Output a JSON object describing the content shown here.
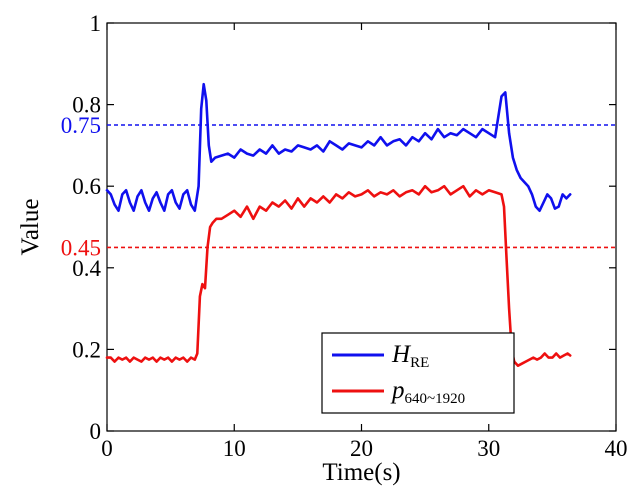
{
  "chart_data": {
    "type": "line",
    "title": "",
    "xlabel": "Time(s)",
    "ylabel": "Value",
    "xlim": [
      0,
      40
    ],
    "ylim": [
      0,
      1
    ],
    "xticks": [
      0,
      10,
      20,
      30,
      40
    ],
    "yticks": [
      0,
      0.2,
      0.4,
      0.6,
      0.8,
      1
    ],
    "xtick_labels": [
      "0",
      "10",
      "20",
      "30",
      "40"
    ],
    "ytick_labels": [
      "0",
      "0.2",
      "0.4",
      "0.6",
      "0.8",
      "1"
    ],
    "grid": false,
    "legend_position": "bottom-right",
    "series": [
      {
        "name": "H",
        "name_subscript": "RE",
        "color": "#1010ee",
        "x": [
          0,
          0.3,
          0.6,
          0.9,
          1.2,
          1.5,
          1.8,
          2.1,
          2.4,
          2.7,
          3.0,
          3.3,
          3.6,
          3.9,
          4.2,
          4.5,
          4.8,
          5.1,
          5.4,
          5.7,
          6.0,
          6.3,
          6.6,
          6.9,
          7.2,
          7.4,
          7.6,
          7.8,
          8.0,
          8.2,
          8.5,
          9,
          9.5,
          10,
          10.5,
          11,
          11.5,
          12,
          12.5,
          13,
          13.5,
          14,
          14.5,
          15,
          15.5,
          16,
          16.5,
          17,
          17.5,
          18,
          18.5,
          19,
          19.5,
          20,
          20.5,
          21,
          21.5,
          22,
          22.5,
          23,
          23.5,
          24,
          24.5,
          25,
          25.5,
          26,
          26.5,
          27,
          27.5,
          28,
          28.5,
          29,
          29.5,
          30,
          30.5,
          31,
          31.3,
          31.6,
          31.9,
          32.2,
          32.5,
          32.8,
          33.1,
          33.4,
          33.7,
          34,
          34.3,
          34.6,
          34.9,
          35.2,
          35.5,
          35.8,
          36.1,
          36.4
        ],
        "y": [
          0.59,
          0.58,
          0.555,
          0.54,
          0.58,
          0.59,
          0.56,
          0.54,
          0.575,
          0.59,
          0.56,
          0.54,
          0.57,
          0.585,
          0.56,
          0.54,
          0.58,
          0.59,
          0.56,
          0.545,
          0.58,
          0.59,
          0.555,
          0.54,
          0.6,
          0.79,
          0.85,
          0.81,
          0.7,
          0.66,
          0.67,
          0.675,
          0.68,
          0.67,
          0.69,
          0.68,
          0.675,
          0.69,
          0.68,
          0.7,
          0.68,
          0.69,
          0.685,
          0.7,
          0.695,
          0.69,
          0.7,
          0.685,
          0.71,
          0.7,
          0.69,
          0.705,
          0.7,
          0.695,
          0.71,
          0.7,
          0.72,
          0.7,
          0.71,
          0.715,
          0.7,
          0.72,
          0.71,
          0.73,
          0.715,
          0.74,
          0.72,
          0.73,
          0.725,
          0.74,
          0.73,
          0.72,
          0.74,
          0.73,
          0.72,
          0.82,
          0.83,
          0.73,
          0.67,
          0.64,
          0.62,
          0.61,
          0.6,
          0.58,
          0.55,
          0.54,
          0.56,
          0.58,
          0.57,
          0.545,
          0.55,
          0.58,
          0.57,
          0.58
        ]
      },
      {
        "name": "p",
        "name_subscript": "640~1920",
        "color": "#ee1010",
        "x": [
          0,
          0.3,
          0.6,
          0.9,
          1.2,
          1.5,
          1.8,
          2.1,
          2.4,
          2.7,
          3.0,
          3.3,
          3.6,
          3.9,
          4.2,
          4.5,
          4.8,
          5.1,
          5.4,
          5.7,
          6.0,
          6.3,
          6.6,
          6.9,
          7.1,
          7.3,
          7.5,
          7.7,
          7.9,
          8.1,
          8.3,
          8.6,
          9,
          9.5,
          10,
          10.5,
          11,
          11.5,
          12,
          12.5,
          13,
          13.5,
          14,
          14.5,
          15,
          15.5,
          16,
          16.5,
          17,
          17.5,
          18,
          18.5,
          19,
          19.5,
          20,
          20.5,
          21,
          21.5,
          22,
          22.5,
          23,
          23.5,
          24,
          24.5,
          25,
          25.5,
          26,
          26.5,
          27,
          27.5,
          28,
          28.5,
          29,
          29.5,
          30,
          30.5,
          31,
          31.2,
          31.4,
          31.6,
          31.8,
          32,
          32.3,
          32.6,
          32.9,
          33.2,
          33.5,
          33.8,
          34.1,
          34.4,
          34.7,
          35,
          35.3,
          35.6,
          35.9,
          36.2,
          36.4
        ],
        "y": [
          0.18,
          0.18,
          0.17,
          0.18,
          0.175,
          0.18,
          0.17,
          0.18,
          0.175,
          0.17,
          0.18,
          0.175,
          0.18,
          0.17,
          0.18,
          0.175,
          0.18,
          0.17,
          0.18,
          0.175,
          0.18,
          0.17,
          0.18,
          0.175,
          0.19,
          0.33,
          0.36,
          0.35,
          0.45,
          0.5,
          0.51,
          0.52,
          0.52,
          0.53,
          0.54,
          0.525,
          0.55,
          0.52,
          0.55,
          0.54,
          0.56,
          0.55,
          0.565,
          0.545,
          0.57,
          0.55,
          0.57,
          0.56,
          0.575,
          0.56,
          0.58,
          0.57,
          0.585,
          0.575,
          0.58,
          0.59,
          0.575,
          0.585,
          0.58,
          0.59,
          0.575,
          0.585,
          0.59,
          0.58,
          0.6,
          0.585,
          0.59,
          0.6,
          0.58,
          0.59,
          0.6,
          0.575,
          0.59,
          0.58,
          0.59,
          0.585,
          0.58,
          0.55,
          0.42,
          0.3,
          0.2,
          0.17,
          0.16,
          0.165,
          0.17,
          0.175,
          0.18,
          0.175,
          0.18,
          0.19,
          0.18,
          0.18,
          0.19,
          0.18,
          0.185,
          0.19,
          0.185
        ]
      }
    ],
    "reference_lines": [
      {
        "value": 0.75,
        "label": "0.75",
        "color": "#1010ee"
      },
      {
        "value": 0.45,
        "label": "0.45",
        "color": "#ee1010"
      }
    ]
  }
}
